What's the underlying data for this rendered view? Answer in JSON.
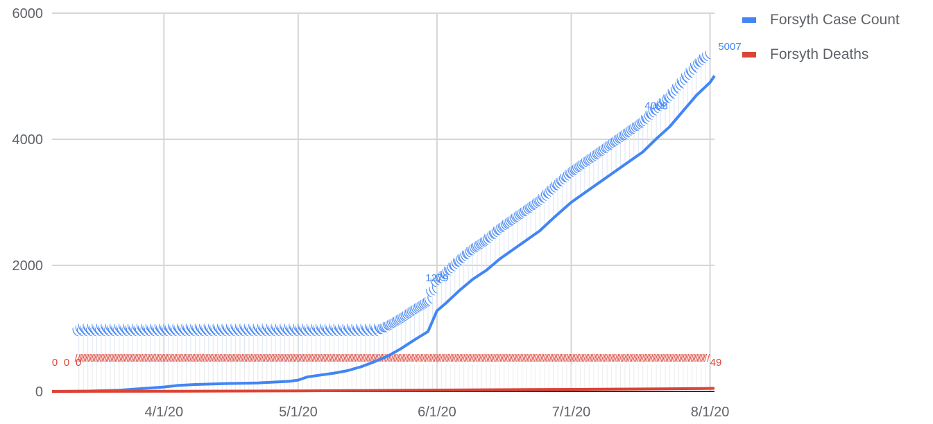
{
  "chart_data": {
    "type": "line",
    "title": "",
    "xlabel": "",
    "ylabel": "",
    "ylim": [
      0,
      6000
    ],
    "yticks": [
      0,
      2000,
      4000,
      6000
    ],
    "xlim": [
      "2020-03-07",
      "2020-08-02"
    ],
    "xticks": [
      {
        "date": "2020-04-01",
        "label": "4/1/20"
      },
      {
        "date": "2020-05-01",
        "label": "5/1/20"
      },
      {
        "date": "2020-06-01",
        "label": "6/1/20"
      },
      {
        "date": "2020-07-01",
        "label": "7/1/20"
      },
      {
        "date": "2020-08-01",
        "label": "8/1/20"
      }
    ],
    "grid": true,
    "legend_position": "right",
    "series": [
      {
        "name": "Forsyth Case Count",
        "color": "#4285f4",
        "points": [
          [
            "2020-03-07",
            0
          ],
          [
            "2020-03-15",
            5
          ],
          [
            "2020-03-22",
            20
          ],
          [
            "2020-03-26",
            40
          ],
          [
            "2020-04-01",
            70
          ],
          [
            "2020-04-04",
            95
          ],
          [
            "2020-04-08",
            110
          ],
          [
            "2020-04-15",
            125
          ],
          [
            "2020-04-22",
            135
          ],
          [
            "2020-04-29",
            160
          ],
          [
            "2020-05-01",
            180
          ],
          [
            "2020-05-03",
            230
          ],
          [
            "2020-05-06",
            260
          ],
          [
            "2020-05-09",
            290
          ],
          [
            "2020-05-12",
            330
          ],
          [
            "2020-05-15",
            390
          ],
          [
            "2020-05-18",
            470
          ],
          [
            "2020-05-21",
            560
          ],
          [
            "2020-05-24",
            680
          ],
          [
            "2020-05-27",
            820
          ],
          [
            "2020-05-30",
            950
          ],
          [
            "2020-06-01",
            1279
          ],
          [
            "2020-06-03",
            1400
          ],
          [
            "2020-06-06",
            1600
          ],
          [
            "2020-06-09",
            1780
          ],
          [
            "2020-06-12",
            1920
          ],
          [
            "2020-06-15",
            2100
          ],
          [
            "2020-06-18",
            2250
          ],
          [
            "2020-06-21",
            2400
          ],
          [
            "2020-06-24",
            2550
          ],
          [
            "2020-06-27",
            2750
          ],
          [
            "2020-07-01",
            3000
          ],
          [
            "2020-07-05",
            3200
          ],
          [
            "2020-07-09",
            3400
          ],
          [
            "2020-07-13",
            3600
          ],
          [
            "2020-07-17",
            3800
          ],
          [
            "2020-07-20",
            4008
          ],
          [
            "2020-07-23",
            4200
          ],
          [
            "2020-07-26",
            4450
          ],
          [
            "2020-07-29",
            4700
          ],
          [
            "2020-08-01",
            4900
          ],
          [
            "2020-08-02",
            5007
          ]
        ],
        "labels": [
          {
            "date": "2020-06-01",
            "value": 1279,
            "text": "1279"
          },
          {
            "date": "2020-07-20",
            "value": 4008,
            "text": "4008"
          },
          {
            "date": "2020-08-02",
            "value": 5007,
            "text": "5007"
          }
        ]
      },
      {
        "name": "Forsyth Deaths",
        "color": "#db4437",
        "points": [
          [
            "2020-03-07",
            0
          ],
          [
            "2020-04-01",
            2
          ],
          [
            "2020-05-01",
            8
          ],
          [
            "2020-05-15",
            14
          ],
          [
            "2020-06-01",
            22
          ],
          [
            "2020-06-15",
            28
          ],
          [
            "2020-07-01",
            33
          ],
          [
            "2020-07-15",
            38
          ],
          [
            "2020-07-29",
            45
          ],
          [
            "2020-08-02",
            49
          ]
        ],
        "labels": [
          {
            "date": "2020-03-07",
            "value": 0,
            "text": "0"
          },
          {
            "date": "2020-03-09",
            "value": 0,
            "text": "0"
          },
          {
            "date": "2020-03-11",
            "value": 0,
            "text": "0"
          },
          {
            "date": "2020-08-02",
            "value": 49,
            "text": "49"
          }
        ]
      }
    ]
  }
}
